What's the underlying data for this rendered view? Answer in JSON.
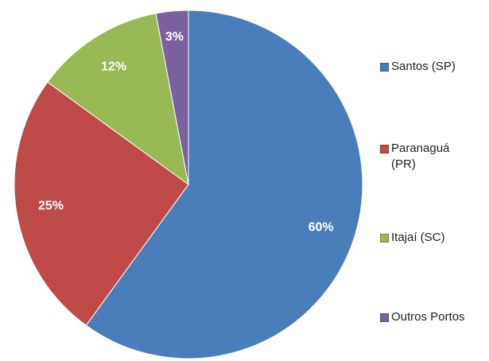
{
  "chart_data": {
    "type": "pie",
    "categories": [
      "Santos (SP)",
      "Paranaguá (PR)",
      "Itajaí (SC)",
      "Outros Portos"
    ],
    "values": [
      60,
      25,
      12,
      3
    ],
    "value_labels": [
      "60%",
      "25%",
      "12%",
      "3%"
    ],
    "colors": [
      "#4a7ebb",
      "#be4b48",
      "#98b954",
      "#7d60a0"
    ],
    "legend": "right"
  }
}
